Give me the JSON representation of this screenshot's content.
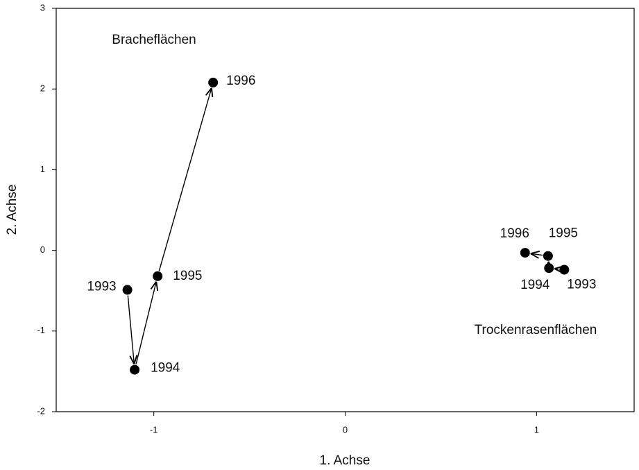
{
  "chart_data": {
    "type": "scatter",
    "xlabel": "1. Achse",
    "ylabel": "2. Achse",
    "xlim": [
      -1.51,
      1.51
    ],
    "ylim": [
      -2,
      3
    ],
    "xticks": [
      -1,
      0,
      1
    ],
    "yticks": [
      -2,
      -1,
      0,
      1,
      2,
      3
    ],
    "grid": false,
    "series": [
      {
        "name": "Bracheflächen",
        "color": "#000000",
        "labels": [
          "1993",
          "1994",
          "1995",
          "1996"
        ],
        "x": [
          -1.138,
          -1.1,
          -0.98,
          -0.69
        ],
        "values": [
          -0.49,
          -1.48,
          -0.32,
          2.08
        ]
      },
      {
        "name": "Trockenrasenflächen",
        "color": "#000000",
        "labels": [
          "1993",
          "1994",
          "1995",
          "1996"
        ],
        "x": [
          1.145,
          1.065,
          1.06,
          0.94
        ],
        "values": [
          -0.24,
          -0.22,
          -0.07,
          -0.03
        ]
      }
    ]
  }
}
